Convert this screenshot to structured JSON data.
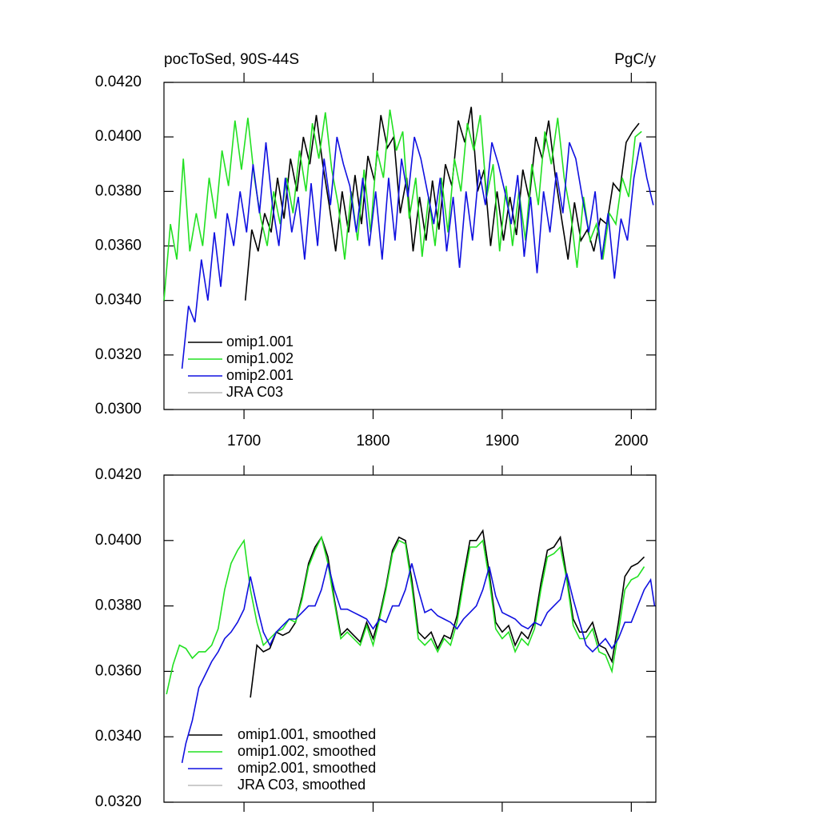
{
  "chart_data": [
    {
      "type": "line",
      "title": "pocToSed, 90S-44S",
      "units": "PgC/y",
      "xlim": [
        1638,
        2019
      ],
      "xticks": [
        1700,
        1800,
        1900,
        2000
      ],
      "ylim": [
        0.03,
        0.042
      ],
      "yticks": [
        {
          "value": 0.03,
          "label": "0.0300"
        },
        {
          "value": 0.032,
          "label": "0.0320"
        },
        {
          "value": 0.034,
          "label": "0.0340"
        },
        {
          "value": 0.036,
          "label": "0.0360"
        },
        {
          "value": 0.038,
          "label": "0.0380"
        },
        {
          "value": 0.04,
          "label": "0.0400"
        },
        {
          "value": 0.042,
          "label": "0.0420"
        }
      ],
      "series": [
        {
          "name": "omip1.001",
          "color": "#000000",
          "x": [
            1701,
            1706,
            1711,
            1716,
            1721,
            1726,
            1731,
            1736,
            1741,
            1746,
            1751,
            1756,
            1761,
            1766,
            1771,
            1776,
            1781,
            1786,
            1791,
            1796,
            1801,
            1806,
            1811,
            1816,
            1821,
            1826,
            1831,
            1836,
            1841,
            1846,
            1851,
            1856,
            1861,
            1866,
            1871,
            1876,
            1881,
            1886,
            1891,
            1896,
            1901,
            1906,
            1911,
            1916,
            1921,
            1926,
            1931,
            1936,
            1941,
            1946,
            1951,
            1956,
            1961,
            1966,
            1971,
            1976,
            1981,
            1986,
            1991,
            1996,
            2001,
            2006
          ],
          "values": [
            0.034,
            0.0366,
            0.0358,
            0.0372,
            0.0365,
            0.0385,
            0.037,
            0.0392,
            0.038,
            0.04,
            0.039,
            0.0408,
            0.039,
            0.0375,
            0.0358,
            0.038,
            0.0365,
            0.0386,
            0.0368,
            0.0393,
            0.0384,
            0.0408,
            0.0396,
            0.04,
            0.0372,
            0.0385,
            0.0358,
            0.0378,
            0.0362,
            0.0384,
            0.0366,
            0.039,
            0.0382,
            0.0406,
            0.0398,
            0.0411,
            0.038,
            0.0388,
            0.036,
            0.038,
            0.0362,
            0.0378,
            0.0364,
            0.0388,
            0.0377,
            0.04,
            0.0392,
            0.0406,
            0.0386,
            0.037,
            0.0355,
            0.0376,
            0.0362,
            0.0366,
            0.0358,
            0.037,
            0.0368,
            0.0383,
            0.038,
            0.0398,
            0.0402,
            0.0405
          ]
        },
        {
          "name": "omip1.002",
          "color": "#22e022",
          "x": [
            1638,
            1643,
            1648,
            1653,
            1658,
            1663,
            1668,
            1673,
            1678,
            1683,
            1688,
            1693,
            1698,
            1703,
            1708,
            1713,
            1718,
            1723,
            1728,
            1733,
            1738,
            1743,
            1748,
            1753,
            1758,
            1763,
            1768,
            1773,
            1778,
            1783,
            1788,
            1793,
            1798,
            1803,
            1808,
            1813,
            1818,
            1823,
            1828,
            1833,
            1838,
            1843,
            1848,
            1853,
            1858,
            1863,
            1868,
            1873,
            1878,
            1883,
            1888,
            1893,
            1898,
            1903,
            1908,
            1913,
            1918,
            1923,
            1928,
            1933,
            1938,
            1943,
            1948,
            1953,
            1958,
            1963,
            1968,
            1973,
            1978,
            1983,
            1988,
            1993,
            1998,
            2003,
            2008
          ],
          "values": [
            0.034,
            0.0368,
            0.0355,
            0.0392,
            0.0358,
            0.0372,
            0.036,
            0.0385,
            0.037,
            0.0395,
            0.0382,
            0.0406,
            0.0388,
            0.0407,
            0.0385,
            0.037,
            0.036,
            0.038,
            0.0368,
            0.0385,
            0.0372,
            0.0395,
            0.038,
            0.0405,
            0.0392,
            0.0409,
            0.0388,
            0.0375,
            0.0355,
            0.038,
            0.0362,
            0.0388,
            0.0365,
            0.0395,
            0.0385,
            0.041,
            0.0395,
            0.0402,
            0.037,
            0.0385,
            0.0356,
            0.0378,
            0.036,
            0.0385,
            0.0365,
            0.0392,
            0.038,
            0.0405,
            0.0395,
            0.0408,
            0.0378,
            0.039,
            0.0358,
            0.0382,
            0.036,
            0.038,
            0.0362,
            0.039,
            0.0375,
            0.0402,
            0.039,
            0.0407,
            0.0385,
            0.0372,
            0.0352,
            0.0378,
            0.0362,
            0.0368,
            0.0355,
            0.0372,
            0.0368,
            0.0385,
            0.0378,
            0.04,
            0.0402
          ]
        },
        {
          "name": "omip2.001",
          "color": "#1010e0",
          "x": [
            1652,
            1657,
            1662,
            1667,
            1672,
            1677,
            1682,
            1687,
            1692,
            1697,
            1702,
            1707,
            1712,
            1717,
            1722,
            1727,
            1732,
            1737,
            1742,
            1747,
            1752,
            1757,
            1762,
            1767,
            1772,
            1777,
            1782,
            1787,
            1792,
            1797,
            1802,
            1807,
            1812,
            1817,
            1822,
            1827,
            1832,
            1837,
            1842,
            1847,
            1852,
            1857,
            1862,
            1867,
            1872,
            1877,
            1882,
            1887,
            1892,
            1897,
            1902,
            1907,
            1912,
            1917,
            1922,
            1927,
            1932,
            1937,
            1942,
            1947,
            1952,
            1957,
            1962,
            1967,
            1972,
            1977,
            1982,
            1987,
            1992,
            1997,
            2002,
            2007,
            2012,
            2017
          ],
          "values": [
            0.0315,
            0.0338,
            0.0332,
            0.0355,
            0.034,
            0.0365,
            0.0345,
            0.0372,
            0.036,
            0.038,
            0.0365,
            0.039,
            0.0372,
            0.0398,
            0.0375,
            0.036,
            0.0385,
            0.0365,
            0.0378,
            0.0355,
            0.0383,
            0.036,
            0.0392,
            0.0375,
            0.04,
            0.039,
            0.0382,
            0.0365,
            0.0385,
            0.036,
            0.038,
            0.0355,
            0.0385,
            0.0362,
            0.0392,
            0.0378,
            0.04,
            0.0392,
            0.038,
            0.0368,
            0.0385,
            0.0358,
            0.0378,
            0.0352,
            0.038,
            0.0362,
            0.0388,
            0.0375,
            0.0398,
            0.039,
            0.038,
            0.0368,
            0.0386,
            0.0356,
            0.0378,
            0.035,
            0.038,
            0.0365,
            0.0387,
            0.0372,
            0.0398,
            0.0392,
            0.0378,
            0.0365,
            0.038,
            0.0355,
            0.0372,
            0.0348,
            0.037,
            0.0362,
            0.0385,
            0.0398,
            0.0385,
            0.0375
          ]
        },
        {
          "name": "JRA C03",
          "color": "#bbbbbb",
          "x": [],
          "values": []
        }
      ]
    },
    {
      "type": "line",
      "xlim": [
        1638,
        2019
      ],
      "xticks": [
        1700,
        1800,
        1900,
        2000
      ],
      "ylim": [
        0.032,
        0.042
      ],
      "yticks": [
        {
          "value": 0.032,
          "label": "0.0320"
        },
        {
          "value": 0.034,
          "label": "0.0340"
        },
        {
          "value": 0.036,
          "label": "0.0360"
        },
        {
          "value": 0.038,
          "label": "0.0380"
        },
        {
          "value": 0.04,
          "label": "0.0400"
        },
        {
          "value": 0.042,
          "label": "0.0420"
        }
      ],
      "series": [
        {
          "name": "omip1.001, smoothed",
          "color": "#000000",
          "x": [
            1705,
            1710,
            1715,
            1720,
            1725,
            1730,
            1735,
            1740,
            1745,
            1750,
            1755,
            1760,
            1765,
            1770,
            1775,
            1780,
            1785,
            1790,
            1795,
            1800,
            1805,
            1810,
            1815,
            1820,
            1825,
            1830,
            1835,
            1840,
            1845,
            1850,
            1855,
            1860,
            1865,
            1870,
            1875,
            1880,
            1885,
            1890,
            1895,
            1900,
            1905,
            1910,
            1915,
            1920,
            1925,
            1930,
            1935,
            1940,
            1945,
            1950,
            1955,
            1960,
            1965,
            1970,
            1975,
            1980,
            1985,
            1990,
            1995,
            2000,
            2005,
            2010
          ],
          "values": [
            0.0352,
            0.0368,
            0.0366,
            0.0367,
            0.0372,
            0.0371,
            0.0372,
            0.0375,
            0.0383,
            0.0393,
            0.0398,
            0.0401,
            0.0395,
            0.0382,
            0.0371,
            0.0373,
            0.0371,
            0.0369,
            0.0375,
            0.037,
            0.0377,
            0.0386,
            0.0397,
            0.0401,
            0.04,
            0.0388,
            0.0372,
            0.037,
            0.0372,
            0.0367,
            0.0371,
            0.037,
            0.0377,
            0.0389,
            0.04,
            0.04,
            0.0403,
            0.039,
            0.0375,
            0.0372,
            0.0374,
            0.0368,
            0.0372,
            0.037,
            0.0375,
            0.0387,
            0.0397,
            0.0398,
            0.0401,
            0.0389,
            0.0376,
            0.0372,
            0.0372,
            0.0375,
            0.0368,
            0.0367,
            0.0363,
            0.0375,
            0.0389,
            0.0392,
            0.0393,
            0.0395
          ]
        },
        {
          "name": "omip1.002, smoothed",
          "color": "#22e022",
          "x": [
            1640,
            1645,
            1650,
            1655,
            1660,
            1665,
            1670,
            1675,
            1680,
            1685,
            1690,
            1695,
            1700,
            1705,
            1710,
            1715,
            1720,
            1725,
            1730,
            1735,
            1740,
            1745,
            1750,
            1755,
            1760,
            1765,
            1770,
            1775,
            1780,
            1785,
            1790,
            1795,
            1800,
            1805,
            1810,
            1815,
            1820,
            1825,
            1830,
            1835,
            1840,
            1845,
            1850,
            1855,
            1860,
            1865,
            1870,
            1875,
            1880,
            1885,
            1890,
            1895,
            1900,
            1905,
            1910,
            1915,
            1920,
            1925,
            1930,
            1935,
            1940,
            1945,
            1950,
            1955,
            1960,
            1965,
            1970,
            1975,
            1980,
            1985,
            1990,
            1995,
            2000,
            2005,
            2010
          ],
          "values": [
            0.0353,
            0.0362,
            0.0368,
            0.0367,
            0.0364,
            0.0366,
            0.0366,
            0.0368,
            0.0373,
            0.0385,
            0.0393,
            0.0397,
            0.04,
            0.0385,
            0.0375,
            0.0368,
            0.037,
            0.0372,
            0.0373,
            0.0376,
            0.0375,
            0.0382,
            0.0392,
            0.0397,
            0.0401,
            0.0393,
            0.0381,
            0.037,
            0.0372,
            0.037,
            0.0368,
            0.0374,
            0.0368,
            0.0376,
            0.0385,
            0.0396,
            0.04,
            0.0399,
            0.0386,
            0.037,
            0.0368,
            0.037,
            0.0366,
            0.037,
            0.0368,
            0.0375,
            0.0387,
            0.0398,
            0.0398,
            0.04,
            0.0388,
            0.0373,
            0.037,
            0.0372,
            0.0366,
            0.037,
            0.0368,
            0.0373,
            0.0385,
            0.0395,
            0.0396,
            0.0398,
            0.0388,
            0.0374,
            0.037,
            0.037,
            0.0373,
            0.0366,
            0.0365,
            0.036,
            0.0372,
            0.0385,
            0.0388,
            0.0389,
            0.0392
          ]
        },
        {
          "name": "omip2.001, smoothed",
          "color": "#1010e0",
          "x": [
            1652,
            1655,
            1660,
            1665,
            1670,
            1675,
            1680,
            1685,
            1690,
            1695,
            1700,
            1705,
            1710,
            1715,
            1720,
            1725,
            1730,
            1735,
            1740,
            1745,
            1750,
            1755,
            1760,
            1765,
            1770,
            1775,
            1780,
            1785,
            1790,
            1795,
            1800,
            1805,
            1810,
            1815,
            1820,
            1825,
            1830,
            1835,
            1840,
            1845,
            1850,
            1855,
            1860,
            1865,
            1870,
            1875,
            1880,
            1885,
            1890,
            1895,
            1900,
            1905,
            1910,
            1915,
            1920,
            1925,
            1930,
            1935,
            1940,
            1945,
            1950,
            1955,
            1960,
            1965,
            1970,
            1975,
            1980,
            1985,
            1990,
            1995,
            2000,
            2005,
            2010,
            2015,
            2018
          ],
          "values": [
            0.0332,
            0.0338,
            0.0345,
            0.0355,
            0.0359,
            0.0363,
            0.0366,
            0.037,
            0.0372,
            0.0375,
            0.0379,
            0.0389,
            0.038,
            0.0372,
            0.0368,
            0.0372,
            0.0374,
            0.0376,
            0.0376,
            0.0378,
            0.038,
            0.038,
            0.0385,
            0.0393,
            0.0385,
            0.0379,
            0.0379,
            0.0378,
            0.0377,
            0.0376,
            0.0373,
            0.0376,
            0.0375,
            0.038,
            0.038,
            0.0385,
            0.0393,
            0.0385,
            0.0378,
            0.0379,
            0.0377,
            0.0376,
            0.0375,
            0.0373,
            0.0376,
            0.0378,
            0.038,
            0.0385,
            0.0392,
            0.0383,
            0.0378,
            0.0377,
            0.0376,
            0.0374,
            0.0373,
            0.0375,
            0.0374,
            0.0378,
            0.038,
            0.0382,
            0.039,
            0.0382,
            0.0375,
            0.0368,
            0.0366,
            0.0368,
            0.037,
            0.0367,
            0.037,
            0.0375,
            0.0375,
            0.038,
            0.0385,
            0.0388,
            0.038
          ]
        },
        {
          "name": "JRA C03, smoothed",
          "color": "#bbbbbb",
          "x": [],
          "values": []
        }
      ]
    }
  ]
}
